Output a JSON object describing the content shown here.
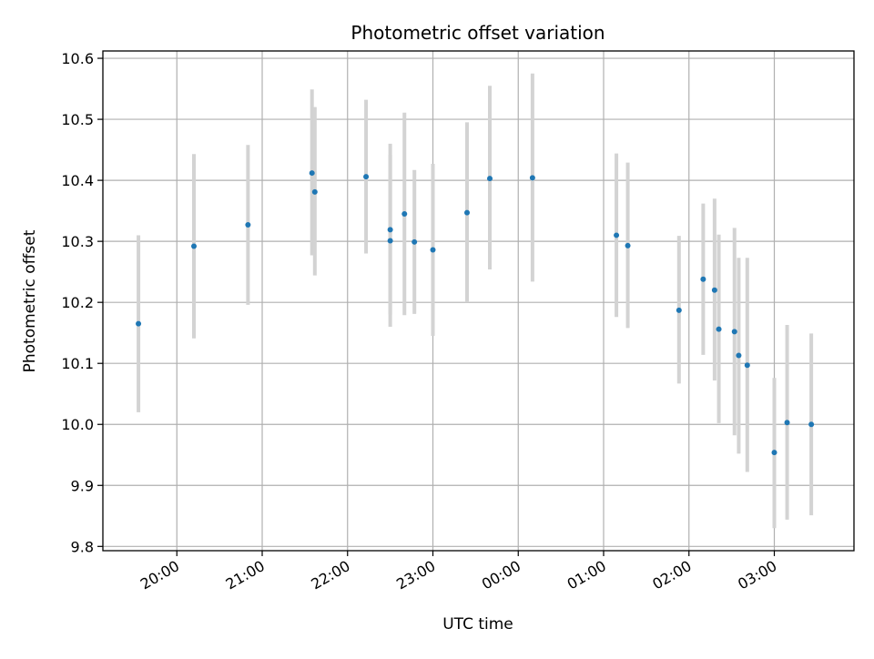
{
  "chart_data": {
    "type": "scatter",
    "title": "Photometric offset variation",
    "xlabel": "UTC time",
    "ylabel": "Photometric offset",
    "grid": true,
    "legend": false,
    "ylim": [
      9.793,
      10.612
    ],
    "xlim": [
      "19:08",
      "03:56"
    ],
    "x_ticks": [
      "20:00",
      "21:00",
      "22:00",
      "23:00",
      "00:00",
      "01:00",
      "02:00",
      "03:00"
    ],
    "y_ticks": [
      "9.8",
      "9.9",
      "10.0",
      "10.1",
      "10.2",
      "10.3",
      "10.4",
      "10.5",
      "10.6"
    ],
    "colors": {
      "marker": "#1f77b4",
      "errorbar": "#d3d3d3",
      "grid": "#b0b0b0"
    },
    "points": [
      {
        "x": "19:33",
        "y": 10.165,
        "ylow": 10.02,
        "yhigh": 10.31
      },
      {
        "x": "20:12",
        "y": 10.292,
        "ylow": 10.141,
        "yhigh": 10.443
      },
      {
        "x": "20:50",
        "y": 10.327,
        "ylow": 10.196,
        "yhigh": 10.458
      },
      {
        "x": "21:35",
        "y": 10.412,
        "ylow": 10.277,
        "yhigh": 10.549
      },
      {
        "x": "21:37",
        "y": 10.381,
        "ylow": 10.244,
        "yhigh": 10.52
      },
      {
        "x": "22:13",
        "y": 10.406,
        "ylow": 10.28,
        "yhigh": 10.532
      },
      {
        "x": "22:30",
        "y": 10.319,
        "ylow": 10.18,
        "yhigh": 10.46
      },
      {
        "x": "22:30",
        "y": 10.301,
        "ylow": 10.16,
        "yhigh": 10.442
      },
      {
        "x": "22:40",
        "y": 10.345,
        "ylow": 10.179,
        "yhigh": 10.511
      },
      {
        "x": "22:47",
        "y": 10.299,
        "ylow": 10.181,
        "yhigh": 10.417
      },
      {
        "x": "23:00",
        "y": 10.286,
        "ylow": 10.145,
        "yhigh": 10.427
      },
      {
        "x": "23:24",
        "y": 10.347,
        "ylow": 10.2,
        "yhigh": 10.495
      },
      {
        "x": "23:40",
        "y": 10.403,
        "ylow": 10.254,
        "yhigh": 10.555
      },
      {
        "x": "00:10",
        "y": 10.404,
        "ylow": 10.234,
        "yhigh": 10.575
      },
      {
        "x": "01:09",
        "y": 10.31,
        "ylow": 10.176,
        "yhigh": 10.444
      },
      {
        "x": "01:17",
        "y": 10.293,
        "ylow": 10.158,
        "yhigh": 10.429
      },
      {
        "x": "01:53",
        "y": 10.187,
        "ylow": 10.067,
        "yhigh": 10.309
      },
      {
        "x": "02:10",
        "y": 10.238,
        "ylow": 10.114,
        "yhigh": 10.362
      },
      {
        "x": "02:18",
        "y": 10.22,
        "ylow": 10.072,
        "yhigh": 10.37
      },
      {
        "x": "02:21",
        "y": 10.156,
        "ylow": 10.002,
        "yhigh": 10.311
      },
      {
        "x": "02:32",
        "y": 10.152,
        "ylow": 9.982,
        "yhigh": 10.322
      },
      {
        "x": "02:35",
        "y": 10.113,
        "ylow": 9.952,
        "yhigh": 10.273
      },
      {
        "x": "02:41",
        "y": 10.097,
        "ylow": 9.922,
        "yhigh": 10.273
      },
      {
        "x": "03:00",
        "y": 9.954,
        "ylow": 9.83,
        "yhigh": 10.076
      },
      {
        "x": "03:09",
        "y": 10.003,
        "ylow": 9.844,
        "yhigh": 10.163
      },
      {
        "x": "03:26",
        "y": 10.0,
        "ylow": 9.851,
        "yhigh": 10.149
      }
    ]
  }
}
